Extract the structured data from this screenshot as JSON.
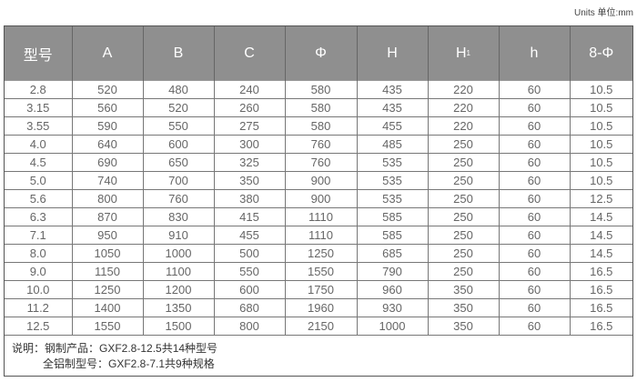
{
  "units_label": "Units 单位:mm",
  "columns": [
    "型号",
    "A",
    "B",
    "C",
    "Φ",
    "H",
    "H",
    "h",
    "8-Φ"
  ],
  "h1_subscript": "1",
  "rows": [
    [
      "2.8",
      "520",
      "480",
      "240",
      "580",
      "435",
      "220",
      "60",
      "10.5"
    ],
    [
      "3.15",
      "560",
      "520",
      "260",
      "580",
      "435",
      "220",
      "60",
      "10.5"
    ],
    [
      "3.55",
      "590",
      "550",
      "275",
      "580",
      "455",
      "220",
      "60",
      "10.5"
    ],
    [
      "4.0",
      "640",
      "600",
      "300",
      "760",
      "485",
      "250",
      "60",
      "10.5"
    ],
    [
      "4.5",
      "690",
      "650",
      "325",
      "760",
      "535",
      "250",
      "60",
      "10.5"
    ],
    [
      "5.0",
      "740",
      "700",
      "350",
      "900",
      "535",
      "250",
      "60",
      "10.5"
    ],
    [
      "5.6",
      "800",
      "760",
      "380",
      "900",
      "535",
      "250",
      "60",
      "12.5"
    ],
    [
      "6.3",
      "870",
      "830",
      "415",
      "1110",
      "585",
      "250",
      "60",
      "14.5"
    ],
    [
      "7.1",
      "950",
      "910",
      "455",
      "1110",
      "585",
      "250",
      "60",
      "14.5"
    ],
    [
      "8.0",
      "1050",
      "1000",
      "500",
      "1250",
      "685",
      "250",
      "60",
      "14.5"
    ],
    [
      "9.0",
      "1150",
      "1100",
      "550",
      "1550",
      "790",
      "250",
      "60",
      "16.5"
    ],
    [
      "10.0",
      "1250",
      "1200",
      "600",
      "1750",
      "960",
      "350",
      "60",
      "16.5"
    ],
    [
      "11.2",
      "1400",
      "1350",
      "680",
      "1960",
      "930",
      "350",
      "60",
      "16.5"
    ],
    [
      "12.5",
      "1550",
      "1500",
      "800",
      "2150",
      "1000",
      "350",
      "60",
      "16.5"
    ]
  ],
  "notes": {
    "line1": "说明：钢制产品：GXF2.8-12.5共14种型号",
    "line2": "全铝制型号：GXF2.8-7.1共9种规格"
  }
}
